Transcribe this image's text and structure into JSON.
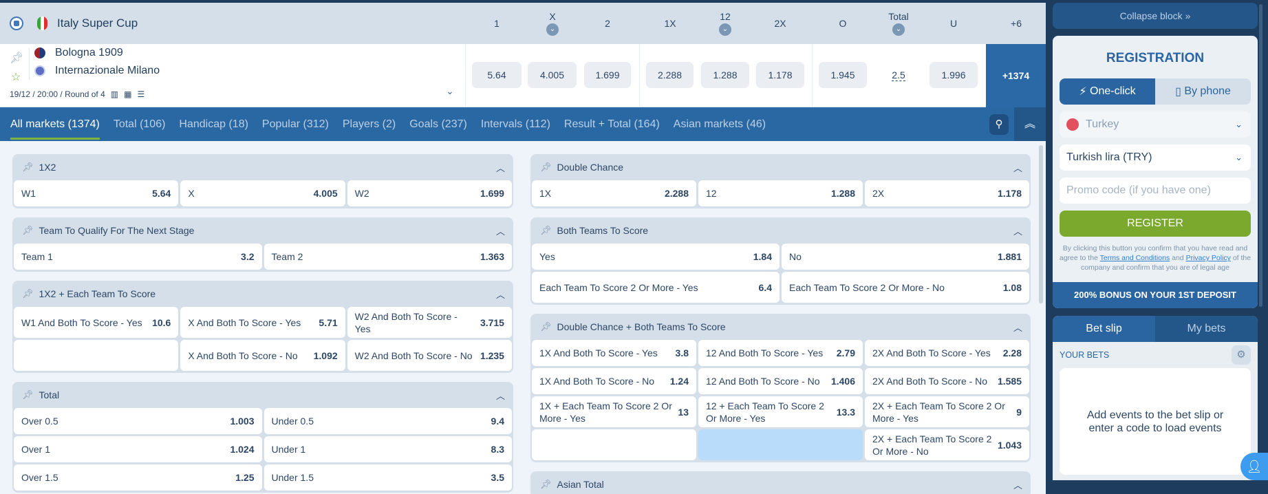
{
  "header": {
    "league": "Italy Super Cup",
    "columns": [
      {
        "label": "1",
        "dropdown": false
      },
      {
        "label": "X",
        "dropdown": true
      },
      {
        "label": "2",
        "dropdown": false
      },
      {
        "label": "1X",
        "dropdown": false
      },
      {
        "label": "12",
        "dropdown": true
      },
      {
        "label": "2X",
        "dropdown": false
      },
      {
        "label": "O",
        "dropdown": false
      },
      {
        "label": "Total",
        "dropdown": true
      },
      {
        "label": "U",
        "dropdown": false
      },
      {
        "label": "+6",
        "dropdown": false
      }
    ]
  },
  "match": {
    "team1": "Bologna 1909",
    "team2": "Internazionale Milano",
    "meta": "19/12 / 20:00 / Round of 4",
    "odds": [
      "5.64",
      "4.005",
      "1.699",
      "2.288",
      "1.288",
      "1.178",
      "1.945",
      "1.996"
    ],
    "total": "2.5",
    "more": "+1374"
  },
  "tabs": [
    "All markets (1374)",
    "Total (106)",
    "Handicap (18)",
    "Popular (312)",
    "Players (2)",
    "Goals (237)",
    "Intervals (112)",
    "Result + Total (164)",
    "Asian markets (46)"
  ],
  "markets_left": [
    {
      "title": "1X2",
      "rows": [
        [
          [
            "W1",
            "5.64"
          ],
          [
            "X",
            "4.005"
          ],
          [
            "W2",
            "1.699"
          ]
        ]
      ]
    },
    {
      "title": "Team To Qualify For The Next Stage",
      "rows": [
        [
          [
            "Team 1",
            "3.2"
          ],
          [
            "Team 2",
            "1.363"
          ]
        ]
      ]
    },
    {
      "title": "1X2 + Each Team To Score",
      "tall": true,
      "rows": [
        [
          [
            "W1 And Both To Score - Yes",
            "10.6"
          ],
          [
            "X And Both To Score - Yes",
            "5.71"
          ],
          [
            "W2 And Both To Score - Yes",
            "3.715"
          ]
        ],
        [
          null,
          [
            "X And Both To Score - No",
            "1.092"
          ],
          [
            "W2 And Both To Score - No",
            "1.235"
          ]
        ]
      ]
    },
    {
      "title": "Total",
      "rows": [
        [
          [
            "Over 0.5",
            "1.003"
          ],
          [
            "Under 0.5",
            "9.4"
          ]
        ],
        [
          [
            "Over 1",
            "1.024"
          ],
          [
            "Under 1",
            "8.3"
          ]
        ],
        [
          [
            "Over 1.5",
            "1.25"
          ],
          [
            "Under 1.5",
            "3.5"
          ]
        ]
      ]
    }
  ],
  "markets_right": [
    {
      "title": "Double Chance",
      "rows": [
        [
          [
            "1X",
            "2.288"
          ],
          [
            "12",
            "1.288"
          ],
          [
            "2X",
            "1.178"
          ]
        ]
      ]
    },
    {
      "title": "Both Teams To Score",
      "rows": [
        [
          [
            "Yes",
            "1.84"
          ],
          [
            "No",
            "1.881"
          ]
        ],
        [
          [
            "Each Team To Score 2 Or More - Yes",
            "6.4"
          ],
          [
            "Each Team To Score 2 Or More - No",
            "1.08"
          ]
        ]
      ]
    },
    {
      "title": "Double Chance + Both Teams To Score",
      "rows": [
        [
          [
            "1X And Both To Score - Yes",
            "3.8"
          ],
          [
            "12 And Both To Score - Yes",
            "2.79"
          ],
          [
            "2X And Both To Score - Yes",
            "2.28"
          ]
        ],
        [
          [
            "1X And Both To Score - No",
            "1.24"
          ],
          [
            "12 And Both To Score - No",
            "1.406"
          ],
          [
            "2X And Both To Score - No",
            "1.585"
          ]
        ],
        [
          [
            "1X + Each Team To Score 2 Or More - Yes",
            "13"
          ],
          [
            "12 + Each Team To Score 2 Or More - Yes",
            "13.3"
          ],
          [
            "2X + Each Team To Score 2 Or More - Yes",
            "9"
          ]
        ],
        [
          null,
          "highlight",
          [
            "2X + Each Team To Score 2 Or More - No",
            "1.043"
          ]
        ]
      ]
    },
    {
      "title": "Asian Total",
      "rows": []
    }
  ],
  "sidebar": {
    "collapse": "Collapse block »",
    "registration": {
      "title": "REGISTRATION",
      "tab_oneclick": "One-click",
      "tab_phone": "By phone",
      "country": "Turkey",
      "currency": "Turkish lira (TRY)",
      "promo_placeholder": "Promo code (if you have one)",
      "register": "REGISTER",
      "fine_1": "By clicking this button you confirm that you have read and agree to the ",
      "terms": "Terms and Conditions",
      "fine_2": " and ",
      "privacy": "Privacy Policy",
      "fine_3": " of the company and confirm that you are of legal age",
      "bonus": "200% BONUS ON YOUR 1ST DEPOSIT"
    },
    "betslip": {
      "tab_slip": "Bet slip",
      "tab_mybets": "My bets",
      "your_bets": "YOUR BETS",
      "empty": "Add events to the bet slip or enter a code to load events"
    }
  },
  "colors": {
    "accent": "#2a65a2",
    "register": "#7aa92e",
    "highlight": "#b9dcfb",
    "header": "#d5dfe9"
  }
}
